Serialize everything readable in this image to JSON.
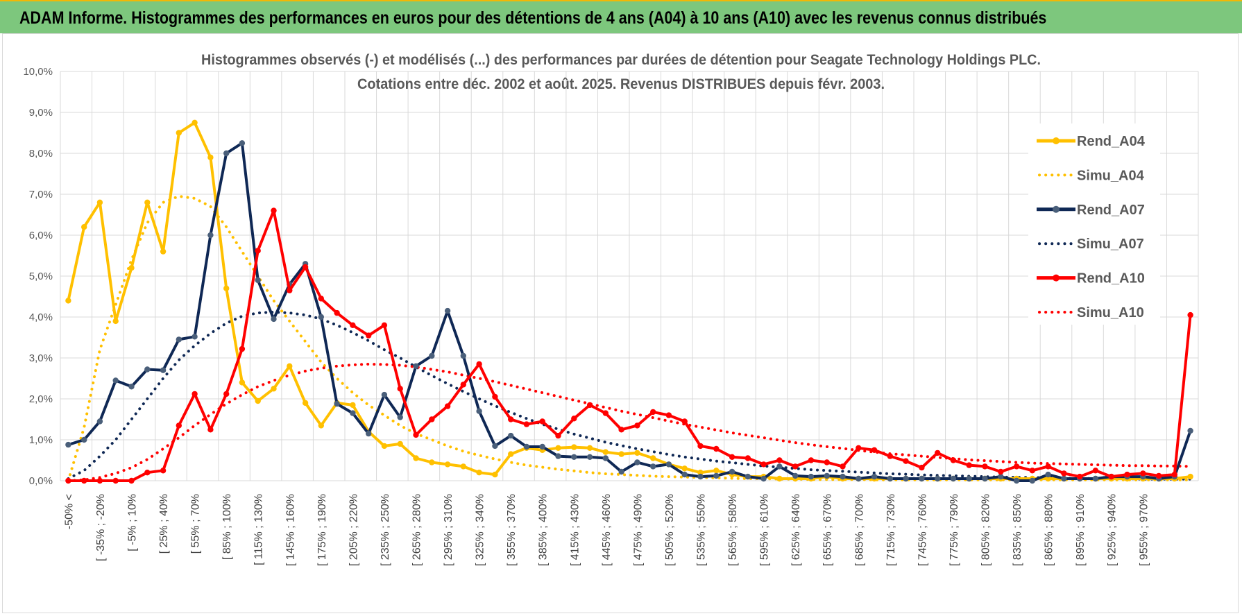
{
  "banner": {
    "title": "ADAM Informe. Histogrammes des performances en euros pour des détentions de 4 ans (A04) à 10 ans (A10) avec les revenus connus distribués"
  },
  "chart_data": {
    "type": "line",
    "title": "Histogrammes observés (-) et modélisés (...) des performances par durées de détention pour Seagate Technology Holdings PLC.",
    "subtitle": "Cotations entre déc. 2002 et août. 2025. Revenus DISTRIBUES depuis févr. 2003.",
    "xlabel": "",
    "ylabel": "",
    "ylim": [
      0,
      10
    ],
    "yticks": [
      "0,0%",
      "1,0%",
      "2,0%",
      "3,0%",
      "4,0%",
      "5,0%",
      "6,0%",
      "7,0%",
      "8,0%",
      "9,0%",
      "10,0%"
    ],
    "grid": true,
    "legend_position": "right",
    "x_tick_labels": [
      "-50% <",
      "[ -35% ; -20%",
      "[ -5% ; 10%",
      "[ 25% ; 40%",
      "[ 55% ; 70%",
      "[ 85% ; 100%",
      "[ 115% ; 130%",
      "[ 145% ; 160%",
      "[ 175% ; 190%",
      "[ 205% ; 220%",
      "[ 235% ; 250%",
      "[ 265% ; 280%",
      "[ 295% ; 310%",
      "[ 325% ; 340%",
      "[ 355% ; 370%",
      "[ 385% ; 400%",
      "[ 415% ; 430%",
      "[ 445% ; 460%",
      "[ 475% ; 490%",
      "[ 505% ; 520%",
      "[ 535% ; 550%",
      "[ 565% ; 580%",
      "[ 595% ; 610%",
      "[ 625% ; 640%",
      "[ 655% ; 670%",
      "[ 685% ; 700%",
      "[ 715% ; 730%",
      "[ 745% ; 760%",
      "[ 775% ; 790%",
      "[ 805% ; 820%",
      "[ 835% ; 850%",
      "[ 865% ; 880%",
      "[ 895% ; 910%",
      "[ 925% ; 940%",
      "[ 955% ; 970%"
    ],
    "series": [
      {
        "name": "Rend_A04",
        "color": "#ffc000",
        "style": "solid",
        "values": [
          4.4,
          6.2,
          6.8,
          3.9,
          5.2,
          6.8,
          5.6,
          8.5,
          8.75,
          7.9,
          4.7,
          2.4,
          1.95,
          2.25,
          2.8,
          1.9,
          1.35,
          1.9,
          1.85,
          1.2,
          0.85,
          0.9,
          0.55,
          0.45,
          0.4,
          0.35,
          0.2,
          0.15,
          0.65,
          0.8,
          0.75,
          0.8,
          0.82,
          0.8,
          0.7,
          0.65,
          0.68,
          0.55,
          0.4,
          0.3,
          0.2,
          0.25,
          0.15,
          0.1,
          0.1,
          0.05,
          0.05,
          0.05,
          0.1,
          0.05,
          0.05,
          0.05,
          0.05,
          0.05,
          0.05,
          0.05,
          0.05,
          0.05,
          0.05,
          0.05,
          0.05,
          0.05,
          0.05,
          0.05,
          0.05,
          0.05,
          0.05,
          0.05,
          0.05,
          0.05,
          0.05,
          0.1
        ]
      },
      {
        "name": "Simu_A04",
        "color": "#ffc000",
        "style": "dotted",
        "values": [
          0.0,
          1.3,
          3.2,
          4.3,
          5.4,
          6.3,
          6.8,
          6.95,
          6.9,
          6.7,
          6.2,
          5.6,
          5.0,
          4.4,
          3.9,
          3.4,
          2.9,
          2.5,
          2.15,
          1.85,
          1.6,
          1.35,
          1.15,
          1.0,
          0.85,
          0.72,
          0.62,
          0.53,
          0.45,
          0.38,
          0.33,
          0.28,
          0.24,
          0.2,
          0.17,
          0.15,
          0.13,
          0.11,
          0.1,
          0.09,
          0.08,
          0.07,
          0.06,
          0.05,
          0.05,
          0.04,
          0.04,
          0.03,
          0.03,
          0.03,
          0.03,
          0.02,
          0.02,
          0.02,
          0.02,
          0.02,
          0.02,
          0.02,
          0.02,
          0.02,
          0.02,
          0.02,
          0.02,
          0.02,
          0.02,
          0.02,
          0.02,
          0.02,
          0.02,
          0.02,
          0.02,
          0.02
        ]
      },
      {
        "name": "Rend_A07",
        "color": "#0f2855",
        "style": "solid",
        "values": [
          0.88,
          1.0,
          1.45,
          2.45,
          2.3,
          2.72,
          2.7,
          3.45,
          3.52,
          6.0,
          8.0,
          8.25,
          4.9,
          3.95,
          4.8,
          5.3,
          4.0,
          1.88,
          1.65,
          1.15,
          2.1,
          1.55,
          2.8,
          3.05,
          4.15,
          3.05,
          1.7,
          0.85,
          1.1,
          0.83,
          0.83,
          0.6,
          0.58,
          0.58,
          0.55,
          0.22,
          0.45,
          0.35,
          0.4,
          0.15,
          0.1,
          0.12,
          0.22,
          0.1,
          0.05,
          0.35,
          0.12,
          0.1,
          0.12,
          0.1,
          0.05,
          0.1,
          0.05,
          0.05,
          0.05,
          0.05,
          0.05,
          0.05,
          0.05,
          0.1,
          0.0,
          0.0,
          0.15,
          0.05,
          0.05,
          0.05,
          0.1,
          0.1,
          0.1,
          0.05,
          0.1,
          1.22
        ]
      },
      {
        "name": "Simu_A07",
        "color": "#0f2855",
        "style": "dotted",
        "values": [
          0.05,
          0.25,
          0.6,
          1.0,
          1.5,
          2.0,
          2.5,
          2.95,
          3.3,
          3.6,
          3.85,
          4.02,
          4.1,
          4.12,
          4.1,
          4.05,
          3.95,
          3.8,
          3.62,
          3.42,
          3.2,
          3.0,
          2.78,
          2.57,
          2.37,
          2.18,
          2.0,
          1.83,
          1.67,
          1.52,
          1.38,
          1.26,
          1.14,
          1.04,
          0.94,
          0.86,
          0.78,
          0.71,
          0.64,
          0.58,
          0.53,
          0.48,
          0.44,
          0.4,
          0.36,
          0.33,
          0.3,
          0.27,
          0.25,
          0.23,
          0.21,
          0.19,
          0.17,
          0.16,
          0.14,
          0.13,
          0.12,
          0.11,
          0.1,
          0.09,
          0.08,
          0.08,
          0.07,
          0.06,
          0.06,
          0.05,
          0.05,
          0.05,
          0.04,
          0.04,
          0.04,
          0.04
        ]
      },
      {
        "name": "Rend_A10",
        "color": "#ff0000",
        "style": "solid",
        "values": [
          0.0,
          0.0,
          0.0,
          0.0,
          0.0,
          0.2,
          0.25,
          1.35,
          2.12,
          1.25,
          2.12,
          3.22,
          5.62,
          6.6,
          4.65,
          5.22,
          4.45,
          4.1,
          3.8,
          3.55,
          3.8,
          2.25,
          1.12,
          1.5,
          1.82,
          2.35,
          2.85,
          2.05,
          1.5,
          1.38,
          1.45,
          1.1,
          1.52,
          1.85,
          1.65,
          1.25,
          1.35,
          1.68,
          1.6,
          1.45,
          0.85,
          0.78,
          0.58,
          0.55,
          0.4,
          0.5,
          0.35,
          0.5,
          0.45,
          0.35,
          0.8,
          0.75,
          0.6,
          0.48,
          0.32,
          0.68,
          0.5,
          0.38,
          0.35,
          0.22,
          0.35,
          0.25,
          0.35,
          0.18,
          0.1,
          0.25,
          0.1,
          0.15,
          0.18,
          0.12,
          0.15,
          4.05
        ]
      },
      {
        "name": "Simu_A10",
        "color": "#ff0000",
        "style": "dotted",
        "values": [
          0.0,
          0.02,
          0.08,
          0.18,
          0.32,
          0.52,
          0.78,
          1.05,
          1.35,
          1.62,
          1.88,
          2.1,
          2.3,
          2.45,
          2.58,
          2.68,
          2.75,
          2.8,
          2.83,
          2.85,
          2.84,
          2.82,
          2.78,
          2.72,
          2.66,
          2.58,
          2.5,
          2.42,
          2.33,
          2.24,
          2.15,
          2.06,
          1.97,
          1.88,
          1.79,
          1.7,
          1.62,
          1.54,
          1.46,
          1.38,
          1.31,
          1.24,
          1.17,
          1.11,
          1.05,
          0.99,
          0.93,
          0.88,
          0.83,
          0.79,
          0.74,
          0.7,
          0.66,
          0.63,
          0.6,
          0.57,
          0.54,
          0.51,
          0.49,
          0.47,
          0.45,
          0.43,
          0.42,
          0.41,
          0.4,
          0.39,
          0.38,
          0.37,
          0.37,
          0.36,
          0.36,
          0.35
        ]
      }
    ]
  }
}
